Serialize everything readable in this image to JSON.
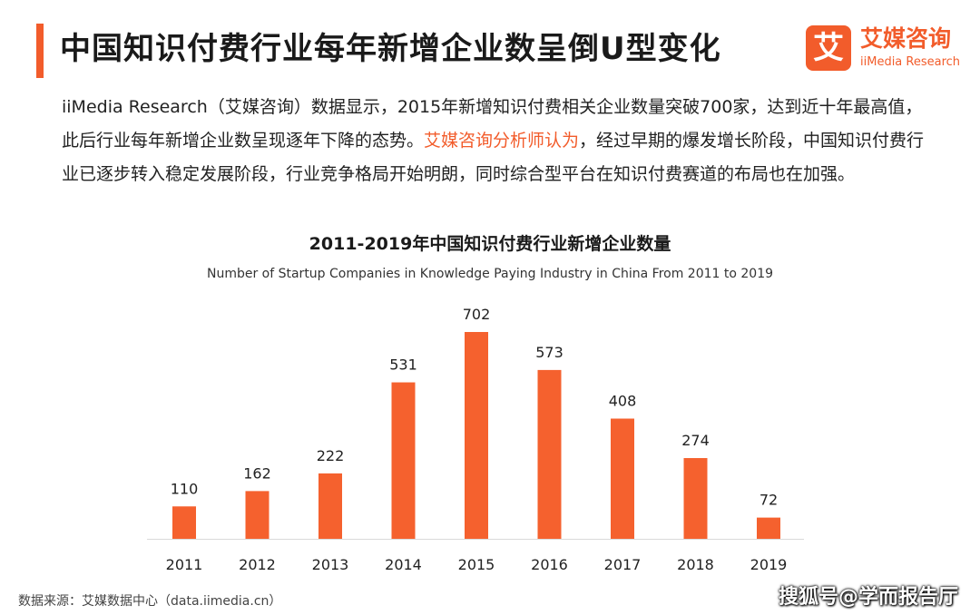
{
  "header": {
    "title": "中国知识付费行业每年新增企业数呈倒U型变化"
  },
  "logo": {
    "mark": "艾",
    "cn": "艾媒咨询",
    "en": "iiMedia Research"
  },
  "paragraph": {
    "part1": "iiMedia Research（艾媒咨询）数据显示，2015年新增知识付费相关企业数量突破700家，达到近十年最高值，此后行业每年新增企业数呈现逐年下降的态势。",
    "highlight": "艾媒咨询分析师认为",
    "part2": "，经过早期的爆发增长阶段，中国知识付费行业已逐步转入稳定发展阶段，行业竞争格局开始明朗，同时综合型平台在知识付费赛道的布局也在加强。"
  },
  "colors": {
    "accent": "#f25c2b",
    "bar": "#f5612e"
  },
  "chart_data": {
    "type": "bar",
    "title": "2011-2019年中国知识付费行业新增企业数量",
    "subtitle": "Number of Startup Companies in Knowledge Paying Industry in China From 2011 to 2019",
    "categories": [
      "2011",
      "2012",
      "2013",
      "2014",
      "2015",
      "2016",
      "2017",
      "2018",
      "2019"
    ],
    "values": [
      110,
      162,
      222,
      531,
      702,
      573,
      408,
      274,
      72
    ],
    "ylim": [
      0,
      702
    ],
    "xlabel": "",
    "ylabel": "",
    "grid": false
  },
  "footer": {
    "source": "数据来源：艾媒数据中心（data.iimedia.cn）",
    "watermark": "搜狐号@学而报告厅"
  }
}
